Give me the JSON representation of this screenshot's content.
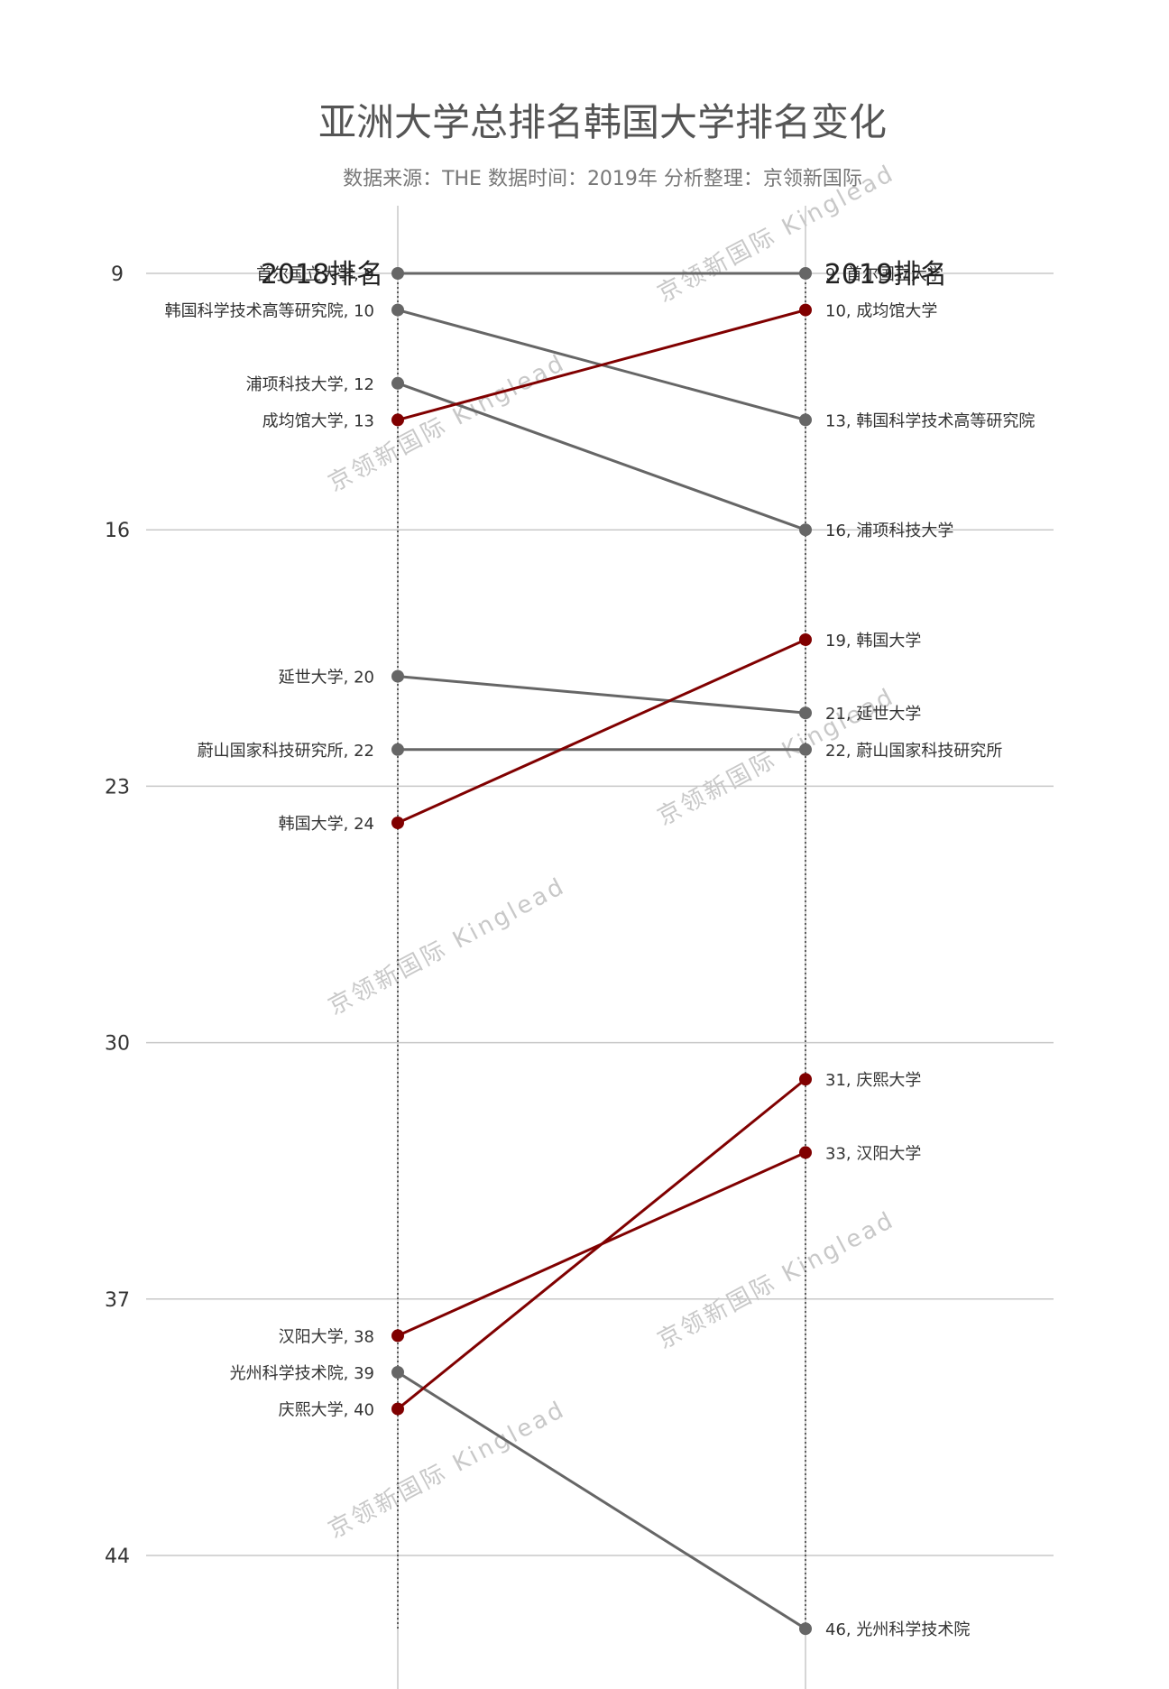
{
  "chart_data": {
    "type": "slope",
    "title": "亚洲大学总排名韩国大学排名变化",
    "subtitle": "数据来源：THE 数据时间：2019年 分析整理：京领新国际",
    "xlabels": [
      "2018排名",
      "2019排名"
    ],
    "yticks": [
      9,
      16,
      23,
      30,
      37,
      44
    ],
    "ylim": [
      9,
      46
    ],
    "y_inverted": true,
    "grid": true,
    "watermark": "京领新国际 Kinglead",
    "colors": {
      "up": "#800000",
      "down": "#666666",
      "grid": "#c8c8c8",
      "axis": "#333333"
    },
    "series": [
      {
        "name": "首尔国立大学",
        "y2018": 9,
        "y2019": 9,
        "trend": "same"
      },
      {
        "name": "韩国科学技术高等研究院",
        "y2018": 10,
        "y2019": 13,
        "trend": "down"
      },
      {
        "name": "浦项科技大学",
        "y2018": 12,
        "y2019": 16,
        "trend": "down"
      },
      {
        "name": "成均馆大学",
        "y2018": 13,
        "y2019": 10,
        "trend": "up"
      },
      {
        "name": "延世大学",
        "y2018": 20,
        "y2019": 21,
        "trend": "down"
      },
      {
        "name": "蔚山国家科技研究所",
        "y2018": 22,
        "y2019": 22,
        "trend": "same"
      },
      {
        "name": "韩国大学",
        "y2018": 24,
        "y2019": 19,
        "trend": "up"
      },
      {
        "name": "汉阳大学",
        "y2018": 38,
        "y2019": 33,
        "trend": "up"
      },
      {
        "name": "光州科学技术院",
        "y2018": 39,
        "y2019": 46,
        "trend": "down"
      },
      {
        "name": "庆熙大学",
        "y2018": 40,
        "y2019": 31,
        "trend": "up"
      }
    ]
  }
}
